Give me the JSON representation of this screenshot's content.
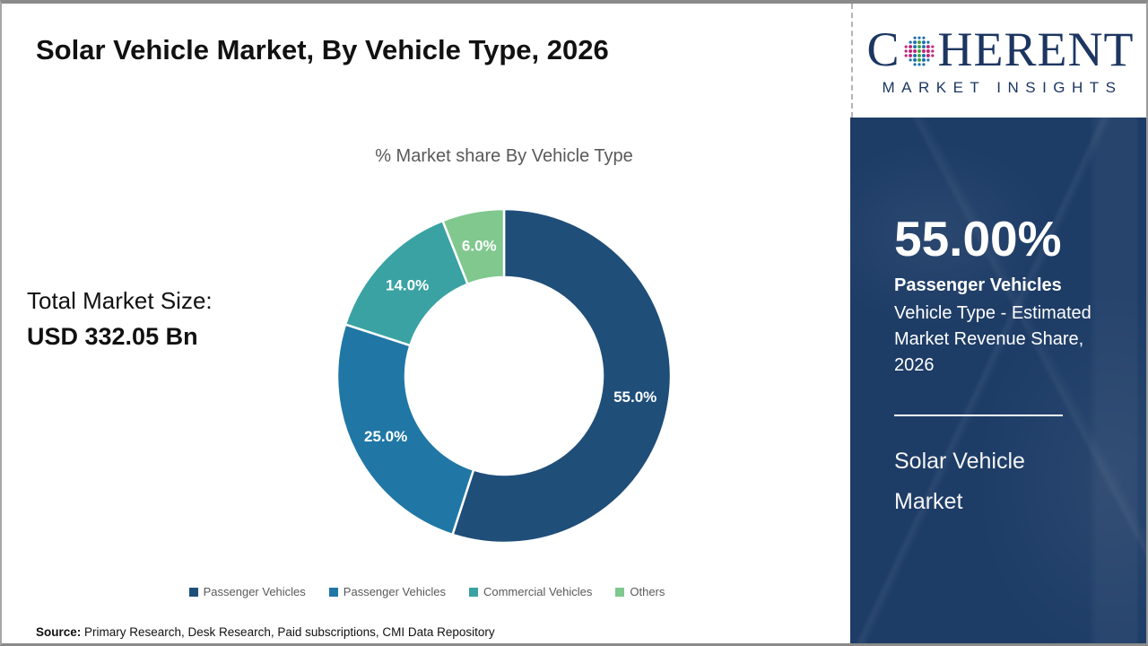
{
  "header": {
    "title": "Solar Vehicle Market, By Vehicle Type, 2026"
  },
  "logo": {
    "word_first_letter": "C",
    "word_rest": "HERENT",
    "subtitle": "MARKET INSIGHTS",
    "navy": "#1c3661",
    "globe_dot_colors": {
      "center": "#3da43f",
      "inner": "#1f6fb0",
      "outer": "#c02579"
    }
  },
  "chart_data": {
    "type": "pie",
    "subtype": "donut",
    "title": "% Market share By Vehicle Type",
    "categories": [
      "Passenger Vehicles",
      "Passenger Vehicles",
      "Commercial Vehicles",
      "Others"
    ],
    "values": [
      55.0,
      25.0,
      14.0,
      6.0
    ],
    "value_labels": [
      "55.0%",
      "25.0%",
      "14.0%",
      "6.0%"
    ],
    "colors": [
      "#1f4e79",
      "#2077a5",
      "#3aa2a2",
      "#80c88e"
    ],
    "start_angle_deg": 0,
    "direction": "clockwise",
    "outer_radius": 186,
    "inner_radius": 110,
    "label_radius": 148,
    "slice_gap_stroke": "#ffffff",
    "legend_position": "bottom"
  },
  "total_market": {
    "label": "Total Market Size:",
    "value": "USD 332.05 Bn"
  },
  "sidebar": {
    "bg_color": "#1d3c66",
    "highlight_value": "55.00%",
    "highlight_label": "Passenger Vehicles",
    "highlight_desc": "Vehicle Type - Estimated Market Revenue Share, 2026",
    "market_name": "Solar Vehicle Market"
  },
  "source": {
    "label": "Source:",
    "text": " Primary Research, Desk Research, Paid subscriptions, CMI Data Repository"
  }
}
